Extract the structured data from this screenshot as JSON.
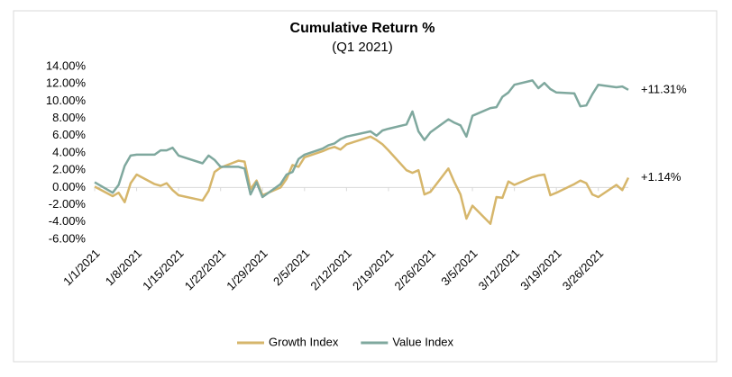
{
  "chart_data": {
    "type": "line",
    "title": "Cumulative Return %",
    "subtitle": "(Q1 2021)",
    "x": [
      "1/1/2021",
      "1/4/2021",
      "1/5/2021",
      "1/6/2021",
      "1/7/2021",
      "1/8/2021",
      "1/11/2021",
      "1/12/2021",
      "1/13/2021",
      "1/14/2021",
      "1/15/2021",
      "1/19/2021",
      "1/20/2021",
      "1/21/2021",
      "1/22/2021",
      "1/25/2021",
      "1/26/2021",
      "1/27/2021",
      "1/28/2021",
      "1/29/2021",
      "2/1/2021",
      "2/2/2021",
      "2/3/2021",
      "2/4/2021",
      "2/5/2021",
      "2/8/2021",
      "2/9/2021",
      "2/10/2021",
      "2/11/2021",
      "2/12/2021",
      "2/16/2021",
      "2/17/2021",
      "2/18/2021",
      "2/19/2021",
      "2/22/2021",
      "2/23/2021",
      "2/24/2021",
      "2/25/2021",
      "2/26/2021",
      "3/1/2021",
      "3/2/2021",
      "3/3/2021",
      "3/4/2021",
      "3/5/2021",
      "3/8/2021",
      "3/9/2021",
      "3/10/2021",
      "3/11/2021",
      "3/12/2021",
      "3/15/2021",
      "3/16/2021",
      "3/17/2021",
      "3/18/2021",
      "3/19/2021",
      "3/22/2021",
      "3/23/2021",
      "3/24/2021",
      "3/25/2021",
      "3/26/2021",
      "3/29/2021",
      "3/30/2021",
      "3/31/2021"
    ],
    "series": [
      {
        "name": "Growth Index",
        "color": "#d6b66b",
        "end_label": "+1.14%",
        "values": [
          0.1,
          -1.0,
          -0.6,
          -1.7,
          0.5,
          1.5,
          0.4,
          0.2,
          0.5,
          -0.3,
          -0.9,
          -1.5,
          -0.4,
          1.8,
          2.3,
          3.1,
          3.0,
          -0.2,
          0.8,
          -0.9,
          0.0,
          1.0,
          2.6,
          2.4,
          3.5,
          4.2,
          4.5,
          4.7,
          4.4,
          5.0,
          5.9,
          5.5,
          5.0,
          4.3,
          2.0,
          1.7,
          2.0,
          -0.8,
          -0.5,
          2.2,
          0.6,
          -0.8,
          -3.6,
          -2.1,
          -4.2,
          -1.1,
          -1.2,
          0.7,
          0.3,
          1.2,
          1.4,
          1.5,
          -0.9,
          -0.6,
          0.4,
          0.8,
          0.5,
          -0.8,
          -1.1,
          0.3,
          -0.3,
          1.14
        ]
      },
      {
        "name": "Value Index",
        "color": "#7fa89e",
        "end_label": "+11.31%",
        "values": [
          0.6,
          -0.6,
          0.3,
          2.5,
          3.7,
          3.8,
          3.8,
          4.3,
          4.3,
          4.6,
          3.7,
          2.8,
          3.7,
          3.2,
          2.4,
          2.4,
          2.2,
          -0.8,
          0.6,
          -1.1,
          0.4,
          1.5,
          1.8,
          3.3,
          3.8,
          4.5,
          4.9,
          5.1,
          5.6,
          5.9,
          6.5,
          6.0,
          6.6,
          6.8,
          7.3,
          8.8,
          6.5,
          5.5,
          6.4,
          7.9,
          7.5,
          7.2,
          5.9,
          8.3,
          9.2,
          9.3,
          10.5,
          11.0,
          11.9,
          12.4,
          11.5,
          12.1,
          11.4,
          11.0,
          10.9,
          9.4,
          9.5,
          10.8,
          11.9,
          11.6,
          11.7,
          11.31
        ]
      }
    ],
    "xlim": [
      "1/1/2021",
      "3/31/2021"
    ],
    "xticks": [
      "1/1/2021",
      "1/8/2021",
      "1/15/2021",
      "1/22/2021",
      "1/29/2021",
      "2/5/2021",
      "2/12/2021",
      "2/19/2021",
      "2/26/2021",
      "3/5/2021",
      "3/12/2021",
      "3/19/2021",
      "3/26/2021"
    ],
    "ylim": [
      -6,
      14
    ],
    "yticks": [
      {
        "value": -6,
        "label": "-6.00%"
      },
      {
        "value": -4,
        "label": "-4.00%"
      },
      {
        "value": -2,
        "label": "-2.00%"
      },
      {
        "value": 0,
        "label": "0.00%"
      },
      {
        "value": 2,
        "label": "2.00%"
      },
      {
        "value": 4,
        "label": "4.00%"
      },
      {
        "value": 6,
        "label": "6.00%"
      },
      {
        "value": 8,
        "label": "8.00%"
      },
      {
        "value": 10,
        "label": "10.00%"
      },
      {
        "value": 12,
        "label": "12.00%"
      },
      {
        "value": 14,
        "label": "14.00%"
      }
    ],
    "legend": "bottom"
  }
}
